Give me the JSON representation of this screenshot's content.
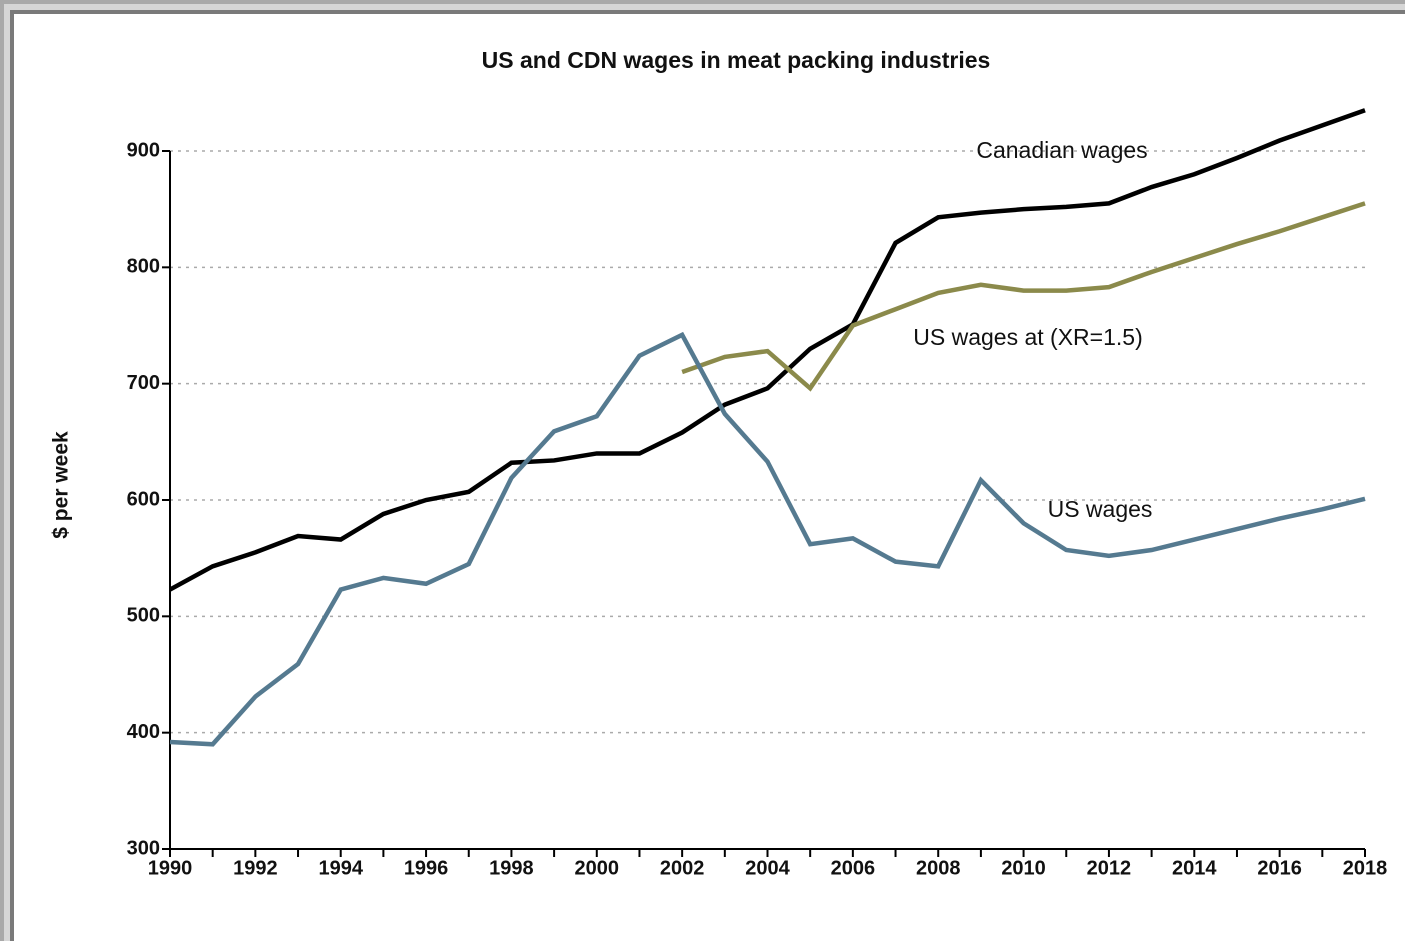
{
  "chart_data": {
    "type": "line",
    "title": "US and CDN wages in meat packing industries",
    "y_label": "$ per week",
    "x": [
      1990,
      1991,
      1992,
      1993,
      1994,
      1995,
      1996,
      1997,
      1998,
      1999,
      2000,
      2001,
      2002,
      2003,
      2004,
      2005,
      2006,
      2007,
      2008,
      2009,
      2010,
      2011,
      2012,
      2013,
      2014,
      2015,
      2016,
      2017,
      2018
    ],
    "series": [
      {
        "name": "Canadian wages",
        "color": "#000000",
        "values": [
          523,
          543,
          555,
          569,
          566,
          588,
          600,
          607,
          632,
          634,
          640,
          640,
          658,
          682,
          696,
          730,
          751,
          821,
          843,
          847,
          850,
          852,
          855,
          869,
          880,
          894,
          909,
          922,
          935
        ]
      },
      {
        "name": "US wages at (XR=1.5)",
        "color": "#8b8a4b",
        "values": [
          null,
          null,
          null,
          null,
          null,
          null,
          null,
          null,
          null,
          null,
          null,
          null,
          710,
          723,
          728,
          696,
          750,
          764,
          778,
          785,
          780,
          780,
          783,
          796,
          808,
          820,
          831,
          843,
          855
        ]
      },
      {
        "name": "US wages",
        "color": "#557a90",
        "values": [
          392,
          390,
          431,
          459,
          523,
          533,
          528,
          545,
          619,
          659,
          672,
          724,
          742,
          674,
          633,
          562,
          567,
          547,
          543,
          617,
          580,
          557,
          552,
          557,
          566,
          575,
          584,
          592,
          601
        ]
      }
    ],
    "xlim": [
      1990,
      2018
    ],
    "xticks": [
      1990,
      1992,
      1994,
      1996,
      1998,
      2000,
      2002,
      2004,
      2006,
      2008,
      2010,
      2012,
      2014,
      2016,
      2018
    ],
    "ylim": [
      300,
      900
    ],
    "yticks": [
      300,
      400,
      500,
      600,
      700,
      800,
      900
    ],
    "grid": true
  }
}
